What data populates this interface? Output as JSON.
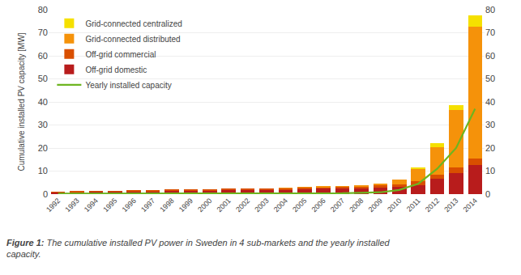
{
  "chart_data": {
    "type": "bar",
    "stacked": true,
    "categories": [
      "1992",
      "1993",
      "1994",
      "1995",
      "1996",
      "1997",
      "1998",
      "1999",
      "2000",
      "2001",
      "2002",
      "2003",
      "2004",
      "2005",
      "2006",
      "2007",
      "2008",
      "2009",
      "2010",
      "2011",
      "2012",
      "2013",
      "2014"
    ],
    "series": [
      {
        "name": "Off-grid domestic",
        "color": "#b81c1c",
        "values": [
          0.8,
          1.0,
          1.1,
          1.2,
          1.3,
          1.4,
          1.5,
          1.6,
          1.7,
          1.8,
          1.9,
          2.0,
          2.1,
          2.2,
          2.3,
          2.4,
          2.5,
          2.7,
          3.0,
          4.0,
          6.5,
          9.0,
          12.5
        ]
      },
      {
        "name": "Off-grid commercial",
        "color": "#d94f00",
        "values": [
          0.1,
          0.15,
          0.2,
          0.2,
          0.25,
          0.3,
          0.35,
          0.4,
          0.4,
          0.45,
          0.5,
          0.5,
          0.6,
          0.65,
          0.7,
          0.8,
          0.9,
          1.0,
          1.2,
          1.5,
          2.0,
          2.5,
          3.0
        ]
      },
      {
        "name": "Grid-connected distributed",
        "color": "#f5920a",
        "values": [
          0.0,
          0.0,
          0.0,
          0.0,
          0.0,
          0.0,
          0.0,
          0.0,
          0.0,
          0.0,
          0.0,
          0.0,
          0.1,
          0.1,
          0.2,
          0.3,
          0.5,
          0.8,
          2.0,
          5.5,
          12.0,
          25.0,
          57.0
        ]
      },
      {
        "name": "Grid-connected centralized",
        "color": "#f5e000",
        "values": [
          0.0,
          0.0,
          0.0,
          0.0,
          0.0,
          0.0,
          0.0,
          0.0,
          0.0,
          0.0,
          0.0,
          0.0,
          0.0,
          0.0,
          0.0,
          0.0,
          0.0,
          0.0,
          0.0,
          0.5,
          1.5,
          2.0,
          5.0
        ]
      },
      {
        "name": "Yearly installed capacity",
        "type": "line",
        "axis": "y2",
        "color": "#6db520",
        "values": [
          0.2,
          0.2,
          0.15,
          0.15,
          0.15,
          0.15,
          0.15,
          0.15,
          0.15,
          0.2,
          0.2,
          0.2,
          0.2,
          0.2,
          0.3,
          0.4,
          0.6,
          0.8,
          1.8,
          4.5,
          11.0,
          20.0,
          37.0
        ]
      }
    ],
    "ylabel": "Cumulative installed PV capacity [MW]",
    "ylim": [
      0,
      80
    ],
    "yticks": [
      0,
      10,
      20,
      30,
      40,
      50,
      60,
      70,
      80
    ],
    "y2lim": [
      0,
      80
    ],
    "y2ticks": [
      0,
      10,
      20,
      30,
      40,
      50,
      60,
      70,
      80
    ],
    "grid": true,
    "legend": "upper left",
    "annotations": [
      "Figure 1:",
      "The cumulative installed PV power in Sweden in 4 sub-markets and the yearly installed\ncapacity."
    ]
  }
}
